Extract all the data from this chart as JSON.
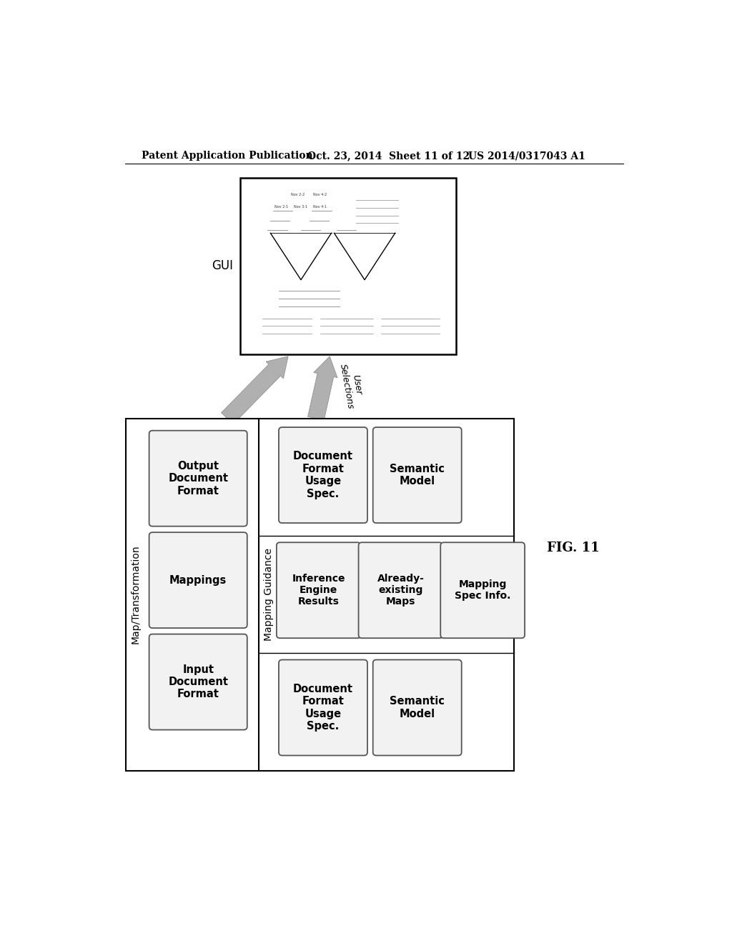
{
  "bg_color": "#ffffff",
  "header_left": "Patent Application Publication",
  "header_mid": "Oct. 23, 2014  Sheet 11 of 12",
  "header_right": "US 2014/0317043 A1",
  "fig_label": "FIG. 11",
  "gui_label": "GUI",
  "map_transform_label": "Map/Transformation",
  "mapping_guidance_label": "Mapping Guidance",
  "left_boxes": [
    "Output\nDocument\nFormat",
    "Mappings",
    "Input\nDocument\nFormat"
  ],
  "top_row": [
    "Document\nFormat\nUsage\nSpec.",
    "Semantic\nModel"
  ],
  "mid_row": [
    "Inference\nEngine\nResults",
    "Already-\nexisting\nMaps",
    "Mapping\nSpec Info."
  ],
  "bot_row": [
    "Document\nFormat\nUsage\nSpec.",
    "Semantic\nModel"
  ],
  "arrow2_label": "User\nSelections",
  "gray_color": "#b0b0b0",
  "box_edge_color": "#555555",
  "box_face_color": "#f2f2f2",
  "panel_edge_color": "#000000"
}
